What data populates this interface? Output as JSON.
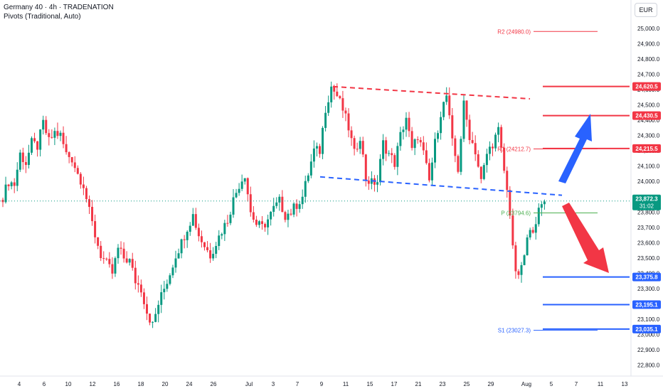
{
  "header": {
    "title": "Germany 40 · 4h · TRADENATION",
    "indicator": "Pivots (Traditional, Auto)"
  },
  "currency_button": "EUR",
  "chart_data": {
    "type": "candlestick",
    "symbol": "Germany 40",
    "interval": "4h",
    "source": "TRADENATION",
    "currency": "EUR",
    "ylim": [
      22800,
      25100
    ],
    "y_ticks": [
      22800,
      22900,
      23000,
      23100,
      23200,
      23300,
      23400,
      23500,
      23600,
      23700,
      23800,
      23900,
      24000,
      24100,
      24200,
      24300,
      24400,
      24500,
      24600,
      24700,
      24800,
      24900,
      25000
    ],
    "y_tick_labels": [
      "22,800.0",
      "22,900.0",
      "23,000.0",
      "23,100.0",
      "23,200.0",
      "23,300.0",
      "23,400.0",
      "23,500.0",
      "23,600.0",
      "23,700.0",
      "23,800.0",
      "23,900.0",
      "24,000.0",
      "24,100.0",
      "24,200.0",
      "24,300.0",
      "24,400.0",
      "24,500.0",
      "24,600.0",
      "24,700.0",
      "24,800.0",
      "24,900.0",
      "25,000.0"
    ],
    "x_ticks": [
      "4",
      "6",
      "10",
      "12",
      "16",
      "18",
      "20",
      "24",
      "26",
      "Jul",
      "3",
      "7",
      "9",
      "11",
      "15",
      "17",
      "21",
      "23",
      "25",
      "29",
      "Aug",
      "5",
      "7",
      "11",
      "13"
    ],
    "close_path": [
      [
        0,
        23900
      ],
      [
        2,
        24000
      ],
      [
        4,
        23980
      ],
      [
        6,
        24180
      ],
      [
        8,
        24120
      ],
      [
        10,
        24250
      ],
      [
        12,
        24230
      ],
      [
        14,
        24380
      ],
      [
        16,
        24260
      ],
      [
        18,
        24320
      ],
      [
        20,
        24300
      ],
      [
        22,
        24180
      ],
      [
        24,
        24150
      ],
      [
        26,
        24050
      ],
      [
        28,
        23980
      ],
      [
        30,
        23800
      ],
      [
        32,
        23650
      ],
      [
        34,
        23520
      ],
      [
        36,
        23460
      ],
      [
        38,
        23400
      ],
      [
        40,
        23560
      ],
      [
        42,
        23500
      ],
      [
        44,
        23480
      ],
      [
        46,
        23350
      ],
      [
        48,
        23300
      ],
      [
        50,
        23150
      ],
      [
        52,
        23060
      ],
      [
        54,
        23200
      ],
      [
        56,
        23300
      ],
      [
        58,
        23400
      ],
      [
        60,
        23520
      ],
      [
        62,
        23600
      ],
      [
        64,
        23700
      ],
      [
        66,
        23780
      ],
      [
        68,
        23650
      ],
      [
        70,
        23580
      ],
      [
        72,
        23520
      ],
      [
        74,
        23600
      ],
      [
        76,
        23680
      ],
      [
        78,
        23750
      ],
      [
        80,
        23880
      ],
      [
        82,
        23980
      ],
      [
        84,
        24050
      ],
      [
        86,
        23800
      ],
      [
        88,
        23720
      ],
      [
        90,
        23700
      ],
      [
        92,
        23750
      ],
      [
        94,
        23820
      ],
      [
        96,
        23870
      ],
      [
        98,
        23780
      ],
      [
        100,
        23800
      ],
      [
        102,
        23850
      ],
      [
        104,
        23900
      ],
      [
        106,
        24050
      ],
      [
        108,
        24200
      ],
      [
        110,
        24200
      ],
      [
        112,
        24480
      ],
      [
        114,
        24620
      ],
      [
        116,
        24560
      ],
      [
        118,
        24470
      ],
      [
        120,
        24350
      ],
      [
        122,
        24180
      ],
      [
        124,
        24300
      ],
      [
        126,
        24020
      ],
      [
        128,
        23990
      ],
      [
        130,
        24000
      ],
      [
        132,
        24250
      ],
      [
        134,
        24180
      ],
      [
        136,
        24120
      ],
      [
        138,
        24300
      ],
      [
        140,
        24420
      ],
      [
        142,
        24200
      ],
      [
        144,
        24300
      ],
      [
        146,
        24180
      ],
      [
        148,
        24000
      ],
      [
        150,
        24250
      ],
      [
        152,
        24450
      ],
      [
        154,
        24560
      ],
      [
        156,
        24250
      ],
      [
        158,
        24080
      ],
      [
        160,
        24500
      ],
      [
        162,
        24300
      ],
      [
        164,
        24200
      ],
      [
        166,
        24000
      ],
      [
        168,
        24180
      ],
      [
        170,
        24250
      ],
      [
        172,
        24330
      ],
      [
        174,
        24070
      ],
      [
        176,
        23800
      ],
      [
        178,
        23380
      ],
      [
        180,
        23420
      ],
      [
        182,
        23620
      ],
      [
        184,
        23700
      ],
      [
        186,
        23800
      ],
      [
        188,
        23872
      ]
    ],
    "levels": [
      {
        "label": "R2 (24980.0)",
        "value": 24980.0,
        "kind": "pivot"
      },
      {
        "label": "24,620.5",
        "value": 24620.5,
        "kind": "resistance"
      },
      {
        "label": "24,430.5",
        "value": 24430.5,
        "kind": "resistance"
      },
      {
        "label": "R1 (24212.7)",
        "value": 24212.7,
        "kind": "pivot"
      },
      {
        "label": "24,215.5",
        "value": 24215.5,
        "kind": "resistance"
      },
      {
        "label": "P (23794.6)",
        "value": 23794.6,
        "kind": "pivot"
      },
      {
        "label": "23,375.8",
        "value": 23375.8,
        "kind": "support"
      },
      {
        "label": "23,195.1",
        "value": 23195.1,
        "kind": "support"
      },
      {
        "label": "S1 (23027.3)",
        "value": 23027.3,
        "kind": "pivot"
      },
      {
        "label": "23,035.1",
        "value": 23035.1,
        "kind": "support"
      }
    ],
    "current_price": "23,872.3",
    "countdown": "31:02",
    "colors": {
      "up": "#089981",
      "down": "#f23645",
      "resistance": "#f23645",
      "support": "#2962ff",
      "pivot_p": "#4caf50",
      "arrow_up": "#2962ff",
      "arrow_down": "#f23645",
      "current": "#089981"
    },
    "grid": false
  }
}
